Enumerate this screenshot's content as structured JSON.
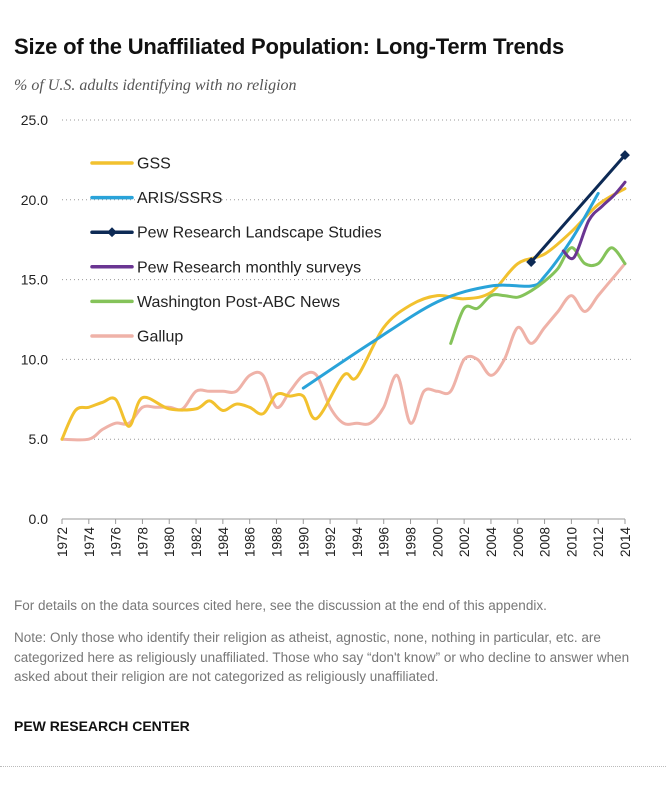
{
  "header": {
    "title": "Size of the Unaffiliated Population: Long-Term Trends",
    "subtitle": "% of U.S. adults identifying with no religion"
  },
  "notes": {
    "details": "For details on the data sources cited here, see the discussion at the end of this appendix.",
    "note": "Note: Only those who identify their religion as atheist, agnostic, none, nothing in particular, etc. are categorized here as religiously unaffiliated. Those who say “don't know” or who decline to answer when asked about their religion are not categorized as religiously unaffiliated.",
    "source": "PEW RESEARCH CENTER"
  },
  "chart_data": {
    "type": "line",
    "title": "Size of the Unaffiliated Population: Long-Term Trends",
    "subtitle": "% of U.S. adults identifying with no religion",
    "xlim": [
      1972,
      2014
    ],
    "ylim": [
      0,
      25
    ],
    "y_ticks": [
      "0.0",
      "5.0",
      "10.0",
      "15.0",
      "20.0",
      "25.0"
    ],
    "x_ticks": [
      "1972",
      "1974",
      "1976",
      "1978",
      "1980",
      "1982",
      "1984",
      "1986",
      "1988",
      "1990",
      "1992",
      "1994",
      "1996",
      "1998",
      "2000",
      "2002",
      "2004",
      "2006",
      "2008",
      "2010",
      "2012",
      "2014"
    ],
    "grid": "horizontal dotted",
    "legend_position": "top-left",
    "series": [
      {
        "name": "GSS",
        "color": "#f2c12e",
        "marker": "none",
        "x": [
          1972,
          1973,
          1974,
          1975,
          1976,
          1977,
          1978,
          1980,
          1982,
          1983,
          1984,
          1985,
          1986,
          1987,
          1988,
          1989,
          1990,
          1991,
          1993,
          1994,
          1996,
          1998,
          2000,
          2002,
          2004,
          2006,
          2008,
          2010,
          2012,
          2014
        ],
        "y": [
          5,
          6.8,
          7.0,
          7.3,
          7.5,
          5.8,
          7.6,
          6.9,
          6.9,
          7.4,
          6.8,
          7.2,
          7.0,
          6.6,
          7.8,
          7.7,
          7.7,
          6.3,
          9.0,
          8.9,
          12.0,
          13.4,
          14.0,
          13.8,
          14.2,
          16.0,
          16.6,
          18.0,
          19.7,
          20.7
        ]
      },
      {
        "name": "ARIS/SSRS",
        "color": "#29a3d9",
        "marker": "none",
        "x": [
          1990,
          1995,
          2000,
          2004,
          2007,
          2008,
          2010,
          2012
        ],
        "y": [
          8.2,
          11.0,
          13.6,
          14.6,
          14.6,
          15.2,
          17.5,
          20.4
        ]
      },
      {
        "name": "Pew Research Landscape Studies",
        "color": "#0d2a55",
        "marker": "diamond",
        "x": [
          2007,
          2014
        ],
        "y": [
          16.1,
          22.8
        ]
      },
      {
        "name": "Pew Research monthly surveys",
        "color": "#6a3592",
        "marker": "none",
        "x": [
          2009.4,
          2010.2,
          2011.3,
          2012.3,
          2013.2,
          2014
        ],
        "y": [
          16.8,
          16.4,
          18.7,
          19.6,
          20.3,
          21.1
        ]
      },
      {
        "name": "Washington Post-ABC News",
        "color": "#85c35a",
        "marker": "none",
        "x": [
          2001,
          2002,
          2003,
          2004,
          2005,
          2006,
          2007,
          2008,
          2009,
          2010,
          2011,
          2012,
          2013,
          2014
        ],
        "y": [
          11.0,
          13.2,
          13.2,
          14.0,
          14.0,
          13.9,
          14.3,
          14.9,
          15.7,
          17.0,
          16.0,
          16.0,
          17.0,
          16.0
        ]
      },
      {
        "name": "Gallup",
        "color": "#efb2a8",
        "marker": "none",
        "x": [
          1972,
          1974,
          1975,
          1976,
          1977,
          1978,
          1979,
          1980,
          1981,
          1982,
          1983,
          1984,
          1985,
          1986,
          1987,
          1988,
          1989,
          1990,
          1991,
          1992,
          1993,
          1994,
          1995,
          1996,
          1997,
          1998,
          1999,
          2000,
          2001,
          2002,
          2003,
          2004,
          2005,
          2006,
          2007,
          2008,
          2009,
          2010,
          2011,
          2012,
          2013,
          2014
        ],
        "y": [
          5.0,
          5.0,
          5.6,
          6.0,
          6.0,
          7.0,
          7.0,
          7.0,
          6.9,
          8.0,
          8.0,
          8.0,
          8.0,
          9.0,
          9.0,
          7.0,
          8.0,
          9.0,
          9.0,
          7.0,
          6.0,
          6.0,
          6.0,
          7.0,
          9.0,
          6.0,
          8.0,
          8.0,
          8.0,
          10.0,
          10.0,
          9.0,
          10.0,
          12.0,
          11.0,
          12.0,
          13.0,
          14.0,
          13.0,
          14.0,
          15.0,
          16.0
        ]
      }
    ]
  }
}
